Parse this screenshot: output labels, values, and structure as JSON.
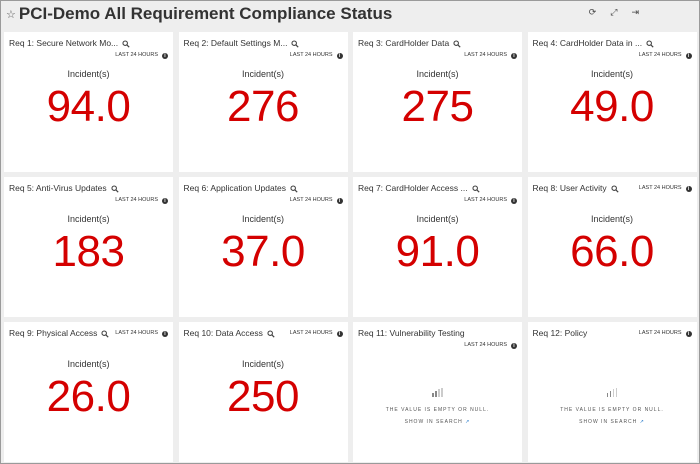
{
  "header": {
    "title": "PCI-Demo All Requirement Compliance Status",
    "star_icon": "star-icon",
    "tools": [
      "refresh-icon",
      "expand-icon",
      "export-icon"
    ]
  },
  "panels": [
    {
      "title": "Req 1: Secure Network Mo...",
      "range": "LAST 24 HOURS",
      "label": "Incident(s)",
      "value": "94.0",
      "zoom": true
    },
    {
      "title": "Req 2: Default Settings M...",
      "range": "LAST 24 HOURS",
      "label": "Incident(s)",
      "value": "276",
      "zoom": true
    },
    {
      "title": "Req 3: CardHolder Data",
      "range": "LAST 24 HOURS",
      "label": "Incident(s)",
      "value": "275",
      "zoom": true
    },
    {
      "title": "Req 4: CardHolder Data in ...",
      "range": "LAST 24 HOURS",
      "label": "Incident(s)",
      "value": "49.0",
      "zoom": true
    },
    {
      "title": "Req 5: Anti-Virus Updates",
      "range": "LAST 24 HOURS",
      "label": "Incident(s)",
      "value": "183",
      "zoom": true
    },
    {
      "title": "Req 6: Application Updates",
      "range": "LAST 24 HOURS",
      "label": "Incident(s)",
      "value": "37.0",
      "zoom": true
    },
    {
      "title": "Req 7: CardHolder Access ...",
      "range": "LAST 24 HOURS",
      "label": "Incident(s)",
      "value": "91.0",
      "zoom": true
    },
    {
      "title": "Req 8: User Activity",
      "range": "LAST 24 HOURS",
      "label": "Incident(s)",
      "value": "66.0",
      "zoom": true
    },
    {
      "title": "Req 9: Physical Access",
      "range": "LAST 24 HOURS",
      "label": "Incident(s)",
      "value": "26.0",
      "zoom": true
    },
    {
      "title": "Req 10: Data Access",
      "range": "LAST 24 HOURS",
      "label": "Incident(s)",
      "value": "250",
      "zoom": true
    },
    {
      "title": "Req 11: Vulnerability Testing",
      "range": "LAST 24 HOURS",
      "empty": "THE VALUE IS EMPTY OR NULL.",
      "link": "SHOW IN SEARCH"
    },
    {
      "title": "Req 12: Policy",
      "range": "LAST 24 HOURS",
      "empty": "THE VALUE IS EMPTY OR NULL.",
      "link": "SHOW IN SEARCH"
    }
  ],
  "colors": {
    "value": "#d40000",
    "link": "#1a73c8"
  }
}
